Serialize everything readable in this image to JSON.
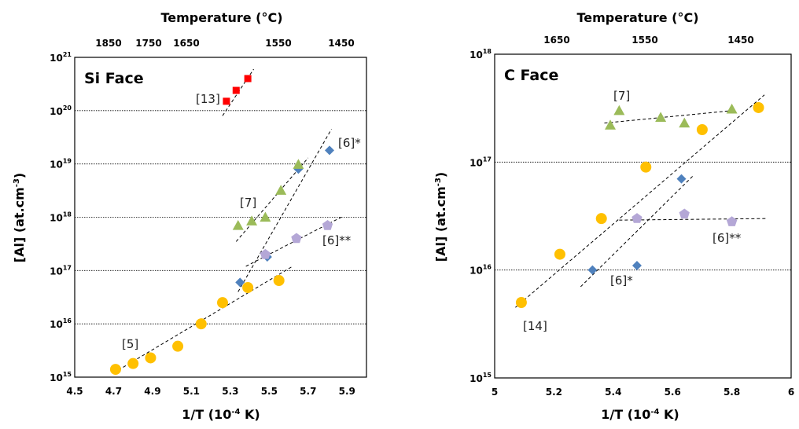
{
  "chart_data": [
    {
      "type": "scatter",
      "title": "Si Face",
      "xlabel": "1/T (10-4 K)",
      "ylabel": "[Al] (at.cm-3)",
      "top_xlabel": "Temperature (°C)",
      "xlim": [
        4.5,
        6.0
      ],
      "ylim_log10": [
        15,
        21
      ],
      "y_scale": "log",
      "x_ticks": [
        "4.5",
        "4.7",
        "4.9",
        "5.1",
        "5.3",
        "5.5",
        "5.7",
        "5.9"
      ],
      "top_ticks": [
        "1850",
        "1750",
        "1650",
        "1550",
        "1450"
      ],
      "y_ticks_exp": [
        "15",
        "16",
        "17",
        "18",
        "19",
        "20",
        "21"
      ],
      "grid": "horizontal dotted",
      "series": [
        {
          "name": "[5]",
          "marker": "circle",
          "color": "#FFC000",
          "x": [
            4.71,
            4.8,
            4.89,
            5.03,
            5.15,
            5.26,
            5.39,
            5.55
          ],
          "y": [
            1400000000000000.0,
            1800000000000000.0,
            2300000000000000.0,
            3800000000000000.0,
            1e+16,
            2.5e+16,
            4.8e+16,
            6.5e+16
          ]
        },
        {
          "name": "[6]*",
          "marker": "diamond",
          "color": "#4F81BD",
          "x": [
            5.35,
            5.49,
            5.65,
            5.81
          ],
          "y": [
            6e+16,
            1.8e+17,
            8e+18,
            1.8e+19
          ]
        },
        {
          "name": "[6]**",
          "marker": "pentagon",
          "color": "#B4A7D6",
          "x": [
            5.48,
            5.64,
            5.8
          ],
          "y": [
            2e+17,
            4e+17,
            7e+17
          ]
        },
        {
          "name": "[7]",
          "marker": "triangle",
          "color": "#9BBB59",
          "x": [
            5.34,
            5.41,
            5.48,
            5.56,
            5.65
          ],
          "y": [
            7e+17,
            8.5e+17,
            1e+18,
            3.2e+18,
            9.8e+18
          ]
        },
        {
          "name": "[13]",
          "marker": "square",
          "color": "#FF0000",
          "x": [
            5.28,
            5.33,
            5.39
          ],
          "y": [
            1.5e+20,
            2.4e+20,
            4e+20
          ]
        }
      ],
      "fit_lines": [
        {
          "x": [
            4.7,
            5.62
          ],
          "y": [
            1200000000000000.0,
            1.2e+17
          ]
        },
        {
          "x": [
            5.34,
            5.82
          ],
          "y": [
            4e+16,
            4.5e+19
          ]
        },
        {
          "x": [
            5.38,
            5.87
          ],
          "y": [
            1.2e+17,
            1e+18
          ]
        },
        {
          "x": [
            5.33,
            5.7
          ],
          "y": [
            3.5e+17,
            1.3e+19
          ]
        },
        {
          "x": [
            5.26,
            5.42
          ],
          "y": [
            8e+19,
            6e+20
          ]
        }
      ],
      "annotations": [
        "[13]",
        "[6]*",
        "[7]",
        "[6]**",
        "[5]"
      ]
    },
    {
      "type": "scatter",
      "title": "C Face",
      "xlabel": "1/T (10-4 K)",
      "ylabel": "[Al] (at.cm-3)",
      "top_xlabel": "Temperature (°C)",
      "xlim": [
        5.0,
        6.0
      ],
      "ylim_log10": [
        15,
        18
      ],
      "y_scale": "log",
      "x_ticks": [
        "5",
        "5.2",
        "5.4",
        "5.6",
        "5.8",
        "6"
      ],
      "top_ticks": [
        "1650",
        "1550",
        "1450"
      ],
      "y_ticks_exp": [
        "15",
        "16",
        "17",
        "18"
      ],
      "grid": "horizontal dotted",
      "series": [
        {
          "name": "[14]",
          "marker": "circle",
          "color": "#FFC000",
          "x": [
            5.09,
            5.22,
            5.36,
            5.51,
            5.7,
            5.89
          ],
          "y": [
            5000000000000000.0,
            1.4e+16,
            3e+16,
            9e+16,
            2e+17,
            3.2e+17
          ]
        },
        {
          "name": "[6]*",
          "marker": "diamond",
          "color": "#4F81BD",
          "x": [
            5.33,
            5.48,
            5.63
          ],
          "y": [
            1e+16,
            1.1e+16,
            7e+16
          ]
        },
        {
          "name": "[6]**",
          "marker": "pentagon",
          "color": "#B4A7D6",
          "x": [
            5.48,
            5.64,
            5.8
          ],
          "y": [
            3e+16,
            3.3e+16,
            2.8e+16
          ]
        },
        {
          "name": "[7]",
          "marker": "triangle",
          "color": "#9BBB59",
          "x": [
            5.39,
            5.42,
            5.56,
            5.64,
            5.8
          ],
          "y": [
            2.2e+17,
            3e+17,
            2.6e+17,
            2.3e+17,
            3.1e+17
          ]
        }
      ],
      "fit_lines": [
        {
          "x": [
            5.07,
            5.91
          ],
          "y": [
            4500000000000000.0,
            4.2e+17
          ]
        },
        {
          "x": [
            5.29,
            5.67
          ],
          "y": [
            7000000000000000.0,
            7.5e+16
          ]
        },
        {
          "x": [
            5.42,
            5.92
          ],
          "y": [
            2.9e+16,
            3e+16
          ]
        },
        {
          "x": [
            5.37,
            5.8
          ],
          "y": [
            2.3e+17,
            3e+17
          ]
        }
      ],
      "annotations": [
        "[7]",
        "[6]*",
        "[6]**",
        "[14]"
      ]
    }
  ]
}
